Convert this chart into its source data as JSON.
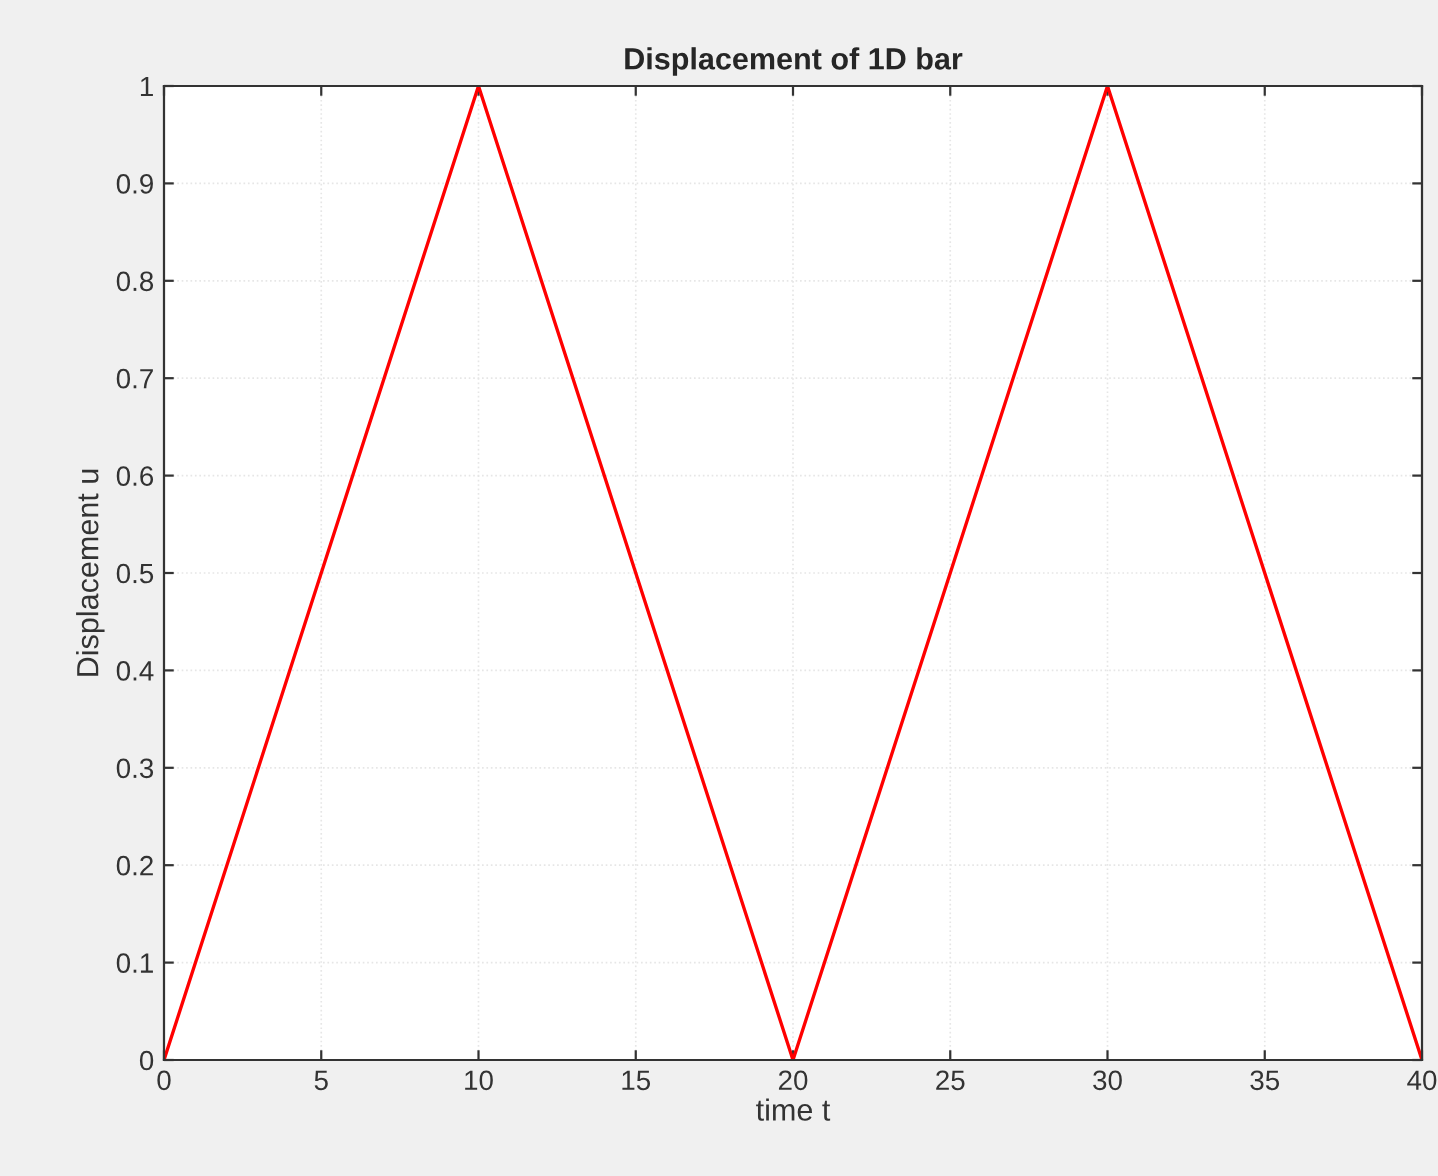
{
  "chart_data": {
    "type": "line",
    "title": "Displacement of 1D bar",
    "xlabel": "time t",
    "ylabel": "Displacement u",
    "x": [
      0,
      10,
      20,
      30,
      40
    ],
    "series": [
      {
        "color": "#ff0000",
        "values": [
          0,
          1,
          0,
          1,
          0
        ]
      }
    ],
    "xlim": [
      0,
      40
    ],
    "xticks": [
      0,
      5,
      10,
      15,
      20,
      25,
      30,
      35,
      40
    ],
    "ylim": [
      0,
      1
    ],
    "yticks": [
      0,
      0.1,
      0.2,
      0.3,
      0.4,
      0.5,
      0.6,
      0.7,
      0.8,
      0.9,
      1
    ],
    "grid": true,
    "marker": "none",
    "line_style": "solid"
  }
}
